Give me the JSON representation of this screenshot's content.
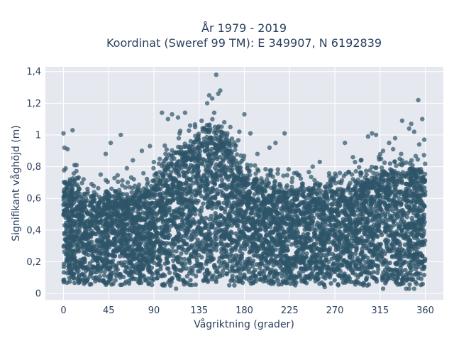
{
  "chart_data": {
    "type": "scatter",
    "title_line1": "År 1979 - 2019",
    "title_line2": "Koordinat (Sweref 99 TM): E 349907, N 6192839",
    "xlabel": "Vågriktning (grader)",
    "ylabel": "Signifikant våghöjd (m)",
    "xlim": [
      -18,
      378
    ],
    "ylim": [
      -0.04,
      1.43
    ],
    "xticks": [
      0,
      45,
      90,
      135,
      180,
      225,
      270,
      315,
      360
    ],
    "xtick_labels": [
      "0",
      "45",
      "90",
      "135",
      "180",
      "225",
      "270",
      "315",
      "360"
    ],
    "yticks": [
      0,
      0.2,
      0.4,
      0.6,
      0.8,
      1.0,
      1.2,
      1.4
    ],
    "ytick_labels": [
      "0",
      "0,2",
      "0,4",
      "0,6",
      "0,8",
      "1",
      "1,2",
      "1,4"
    ],
    "grid": true,
    "background_color": "#e5e8ef",
    "marker_color": "#2e5468",
    "envelope": {
      "x": [
        0,
        10,
        20,
        30,
        45,
        60,
        75,
        90,
        100,
        110,
        120,
        135,
        145,
        155,
        165,
        175,
        185,
        200,
        215,
        230,
        250,
        270,
        290,
        305,
        315,
        330,
        345,
        360
      ],
      "y_upper": [
        0.72,
        0.65,
        0.58,
        0.56,
        0.58,
        0.57,
        0.6,
        0.66,
        0.76,
        0.84,
        0.88,
        0.92,
        0.96,
        0.96,
        0.88,
        0.78,
        0.7,
        0.66,
        0.64,
        0.62,
        0.62,
        0.64,
        0.66,
        0.7,
        0.74,
        0.74,
        0.74,
        0.72
      ],
      "y_lower": 0.05
    },
    "outliers": [
      {
        "x": 0,
        "y": 1.01
      },
      {
        "x": 1,
        "y": 0.92
      },
      {
        "x": 4,
        "y": 0.91
      },
      {
        "x": 9,
        "y": 1.03
      },
      {
        "x": 11,
        "y": 0.81
      },
      {
        "x": 13,
        "y": 0.81
      },
      {
        "x": 20,
        "y": 0.72
      },
      {
        "x": 28,
        "y": 0.69
      },
      {
        "x": 37,
        "y": 0.75
      },
      {
        "x": 42,
        "y": 0.88
      },
      {
        "x": 47,
        "y": 0.95
      },
      {
        "x": 57,
        "y": 1.0
      },
      {
        "x": 63,
        "y": 0.79
      },
      {
        "x": 69,
        "y": 0.84
      },
      {
        "x": 78,
        "y": 0.9
      },
      {
        "x": 86,
        "y": 0.93
      },
      {
        "x": 98,
        "y": 1.14
      },
      {
        "x": 104,
        "y": 1.1
      },
      {
        "x": 108,
        "y": 1.13
      },
      {
        "x": 114,
        "y": 1.11
      },
      {
        "x": 121,
        "y": 1.14
      },
      {
        "x": 126,
        "y": 1.06
      },
      {
        "x": 131,
        "y": 1.05
      },
      {
        "x": 140,
        "y": 1.04
      },
      {
        "x": 143,
        "y": 1.2
      },
      {
        "x": 145,
        "y": 1.25
      },
      {
        "x": 148,
        "y": 1.23
      },
      {
        "x": 150,
        "y": 1.14
      },
      {
        "x": 152,
        "y": 1.38
      },
      {
        "x": 154,
        "y": 1.26
      },
      {
        "x": 156,
        "y": 1.28
      },
      {
        "x": 160,
        "y": 1.08
      },
      {
        "x": 166,
        "y": 1.05
      },
      {
        "x": 175,
        "y": 1.02
      },
      {
        "x": 180,
        "y": 1.13
      },
      {
        "x": 186,
        "y": 1.01
      },
      {
        "x": 193,
        "y": 0.88
      },
      {
        "x": 205,
        "y": 0.92
      },
      {
        "x": 211,
        "y": 0.95
      },
      {
        "x": 220,
        "y": 1.01
      },
      {
        "x": 232,
        "y": 0.76
      },
      {
        "x": 248,
        "y": 0.8
      },
      {
        "x": 255,
        "y": 0.83
      },
      {
        "x": 268,
        "y": 0.73
      },
      {
        "x": 275,
        "y": 0.76
      },
      {
        "x": 280,
        "y": 0.95
      },
      {
        "x": 288,
        "y": 0.86
      },
      {
        "x": 296,
        "y": 0.84
      },
      {
        "x": 303,
        "y": 0.99
      },
      {
        "x": 307,
        "y": 1.01
      },
      {
        "x": 311,
        "y": 1.0
      },
      {
        "x": 318,
        "y": 0.9
      },
      {
        "x": 324,
        "y": 0.95
      },
      {
        "x": 328,
        "y": 0.91
      },
      {
        "x": 330,
        "y": 0.98
      },
      {
        "x": 336,
        "y": 0.88
      },
      {
        "x": 337,
        "y": 1.09
      },
      {
        "x": 344,
        "y": 1.04
      },
      {
        "x": 346,
        "y": 1.07
      },
      {
        "x": 349,
        "y": 1.02
      },
      {
        "x": 353,
        "y": 1.22
      },
      {
        "x": 357,
        "y": 1.1
      },
      {
        "x": 359,
        "y": 0.97
      },
      {
        "x": 354,
        "y": 0.94
      },
      {
        "x": 341,
        "y": 0.03
      },
      {
        "x": 344,
        "y": 0.03
      },
      {
        "x": 349,
        "y": 0.03
      },
      {
        "x": 112,
        "y": 0.03
      },
      {
        "x": 318,
        "y": 0.03
      },
      {
        "x": 260,
        "y": 0.04
      }
    ]
  }
}
